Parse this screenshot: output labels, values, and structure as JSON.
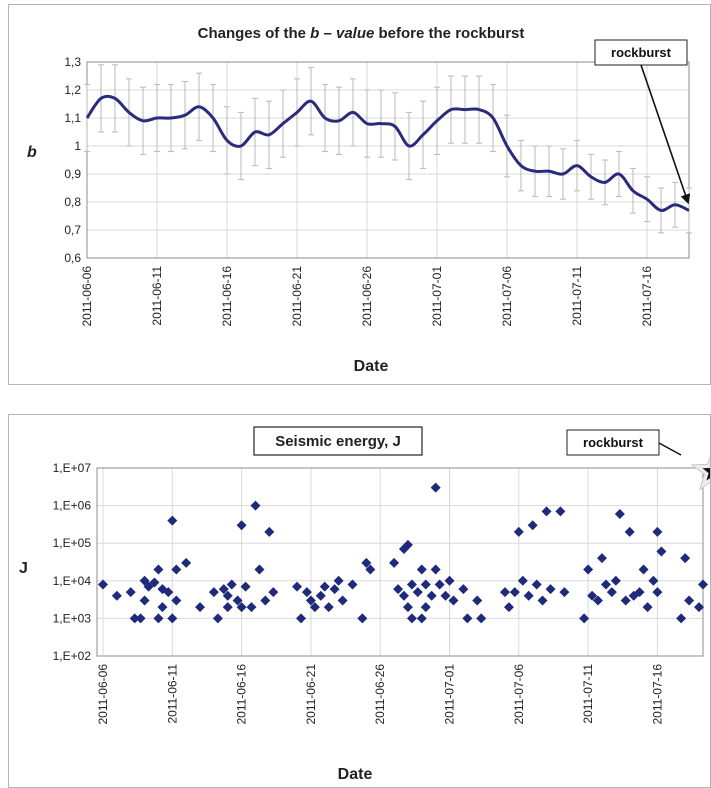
{
  "chart_data": [
    {
      "type": "line",
      "title_parts": [
        "Changes of the ",
        "b",
        " – ",
        "value",
        " before the rockburst"
      ],
      "xlabel": "Date",
      "ylabel": "b",
      "annotation": "rockburst",
      "ylim": [
        0.6,
        1.3
      ],
      "yticks": [
        "0,6",
        "0,7",
        "0,8",
        "0,9",
        "1",
        "1,1",
        "1,2",
        "1,3"
      ],
      "xticks": [
        "2011-06-06",
        "2011-06-11",
        "2011-06-16",
        "2011-06-21",
        "2011-06-26",
        "2011-07-01",
        "2011-07-06",
        "2011-07-11",
        "2011-07-16"
      ],
      "x_start": "2011-06-06",
      "x_end": "2011-07-19",
      "grid": true,
      "series": [
        {
          "x": [
            "2011-06-06",
            "2011-06-07",
            "2011-06-08",
            "2011-06-09",
            "2011-06-10",
            "2011-06-11",
            "2011-06-12",
            "2011-06-13",
            "2011-06-14",
            "2011-06-15",
            "2011-06-16",
            "2011-06-17",
            "2011-06-18",
            "2011-06-19",
            "2011-06-20",
            "2011-06-21",
            "2011-06-22",
            "2011-06-23",
            "2011-06-24",
            "2011-06-25",
            "2011-06-26",
            "2011-06-27",
            "2011-06-28",
            "2011-06-29",
            "2011-06-30",
            "2011-07-01",
            "2011-07-02",
            "2011-07-03",
            "2011-07-04",
            "2011-07-05",
            "2011-07-06",
            "2011-07-07",
            "2011-07-08",
            "2011-07-09",
            "2011-07-10",
            "2011-07-11",
            "2011-07-12",
            "2011-07-13",
            "2011-07-14",
            "2011-07-15",
            "2011-07-16",
            "2011-07-17",
            "2011-07-18",
            "2011-07-19"
          ],
          "values": [
            1.1,
            1.17,
            1.17,
            1.12,
            1.09,
            1.1,
            1.1,
            1.11,
            1.14,
            1.1,
            1.02,
            1.0,
            1.05,
            1.04,
            1.08,
            1.12,
            1.16,
            1.1,
            1.09,
            1.12,
            1.08,
            1.08,
            1.07,
            1.0,
            1.04,
            1.09,
            1.13,
            1.13,
            1.13,
            1.1,
            1.0,
            0.93,
            0.91,
            0.91,
            0.9,
            0.93,
            0.89,
            0.87,
            0.9,
            0.84,
            0.81,
            0.77,
            0.79,
            0.77
          ],
          "error": [
            0.12,
            0.12,
            0.12,
            0.12,
            0.12,
            0.12,
            0.12,
            0.12,
            0.12,
            0.12,
            0.12,
            0.12,
            0.12,
            0.12,
            0.12,
            0.12,
            0.12,
            0.12,
            0.12,
            0.12,
            0.12,
            0.12,
            0.12,
            0.12,
            0.12,
            0.12,
            0.12,
            0.12,
            0.12,
            0.12,
            0.11,
            0.09,
            0.09,
            0.09,
            0.09,
            0.09,
            0.08,
            0.08,
            0.08,
            0.08,
            0.08,
            0.08,
            0.08,
            0.08
          ]
        }
      ]
    },
    {
      "type": "scatter",
      "title": "Seismic energy, J",
      "xlabel": "Date",
      "ylabel": "J",
      "annotation": "rockburst",
      "yscale": "log",
      "ylim": [
        100,
        10000000
      ],
      "yticks": [
        "1,E+02",
        "1,E+03",
        "1,E+04",
        "1,E+05",
        "1,E+06",
        "1,E+07"
      ],
      "xticks": [
        "2011-06-06",
        "2011-06-11",
        "2011-06-16",
        "2011-06-21",
        "2011-06-26",
        "2011-07-01",
        "2011-07-06",
        "2011-07-11",
        "2011-07-16"
      ],
      "x_start": "2011-06-06",
      "x_end": "2011-07-19",
      "grid": true,
      "rockburst_point": {
        "x": "2011-07-20",
        "y": 8000000
      },
      "series": [
        {
          "x": [
            "2011-06-06",
            "2011-06-07",
            "2011-06-08",
            "2011-06-08",
            "2011-06-09",
            "2011-06-09",
            "2011-06-09",
            "2011-06-09",
            "2011-06-10",
            "2011-06-10",
            "2011-06-10",
            "2011-06-10",
            "2011-06-10",
            "2011-06-11",
            "2011-06-11",
            "2011-06-11",
            "2011-06-11",
            "2011-06-11",
            "2011-06-12",
            "2011-06-13",
            "2011-06-14",
            "2011-06-14",
            "2011-06-15",
            "2011-06-15",
            "2011-06-15",
            "2011-06-15",
            "2011-06-16",
            "2011-06-16",
            "2011-06-16",
            "2011-06-16",
            "2011-06-17",
            "2011-06-17",
            "2011-06-17",
            "2011-06-18",
            "2011-06-18",
            "2011-06-18",
            "2011-06-20",
            "2011-06-20",
            "2011-06-21",
            "2011-06-21",
            "2011-06-21",
            "2011-06-22",
            "2011-06-22",
            "2011-06-22",
            "2011-06-23",
            "2011-06-23",
            "2011-06-23",
            "2011-06-24",
            "2011-06-25",
            "2011-06-25",
            "2011-06-25",
            "2011-06-27",
            "2011-06-27",
            "2011-06-28",
            "2011-06-28",
            "2011-06-28",
            "2011-06-28",
            "2011-06-28",
            "2011-06-28",
            "2011-06-29",
            "2011-06-29",
            "2011-06-29",
            "2011-06-29",
            "2011-06-29",
            "2011-06-30",
            "2011-06-30",
            "2011-06-30",
            "2011-06-30",
            "2011-07-01",
            "2011-07-01",
            "2011-07-01",
            "2011-07-02",
            "2011-07-02",
            "2011-07-03",
            "2011-07-03",
            "2011-07-05",
            "2011-07-05",
            "2011-07-06",
            "2011-07-06",
            "2011-07-06",
            "2011-07-07",
            "2011-07-07",
            "2011-07-07",
            "2011-07-08",
            "2011-07-08",
            "2011-07-08",
            "2011-07-09",
            "2011-07-09",
            "2011-07-11",
            "2011-07-11",
            "2011-07-11",
            "2011-07-12",
            "2011-07-12",
            "2011-07-12",
            "2011-07-13",
            "2011-07-13",
            "2011-07-13",
            "2011-07-14",
            "2011-07-14",
            "2011-07-14",
            "2011-07-15",
            "2011-07-15",
            "2011-07-15",
            "2011-07-16",
            "2011-07-16",
            "2011-07-16",
            "2011-07-16",
            "2011-07-18",
            "2011-07-18",
            "2011-07-18",
            "2011-07-19",
            "2011-07-19"
          ],
          "values": [
            8000,
            4000,
            5000,
            1000,
            10000,
            7000,
            1000,
            3000,
            20000,
            6000,
            9000,
            1000,
            2000,
            400000,
            20000,
            5000,
            1000,
            3000,
            30000,
            2000,
            5000,
            1000,
            4000,
            8000,
            6000,
            2000,
            300000,
            7000,
            3000,
            2000,
            1000000,
            20000,
            2000,
            200000,
            5000,
            3000,
            7000,
            1000,
            3000,
            2000,
            5000,
            7000,
            2000,
            4000,
            10000,
            3000,
            6000,
            8000,
            30000,
            20000,
            1000,
            30000,
            6000,
            90000,
            8000,
            4000,
            2000,
            1000,
            70000,
            20000,
            8000,
            5000,
            1000,
            2000,
            3000000,
            8000,
            4000,
            20000,
            10000,
            3000,
            4000,
            6000,
            1000,
            3000,
            1000,
            5000,
            2000,
            200000,
            10000,
            5000,
            300000,
            8000,
            4000,
            700000,
            6000,
            3000,
            700000,
            5000,
            20000,
            4000,
            1000,
            40000,
            8000,
            3000,
            10000,
            600000,
            5000,
            200000,
            4000,
            3000,
            20000,
            2000,
            5000,
            200000,
            60000,
            10000,
            5000,
            40000,
            3000,
            1000,
            2000,
            8000
          ]
        }
      ]
    }
  ]
}
